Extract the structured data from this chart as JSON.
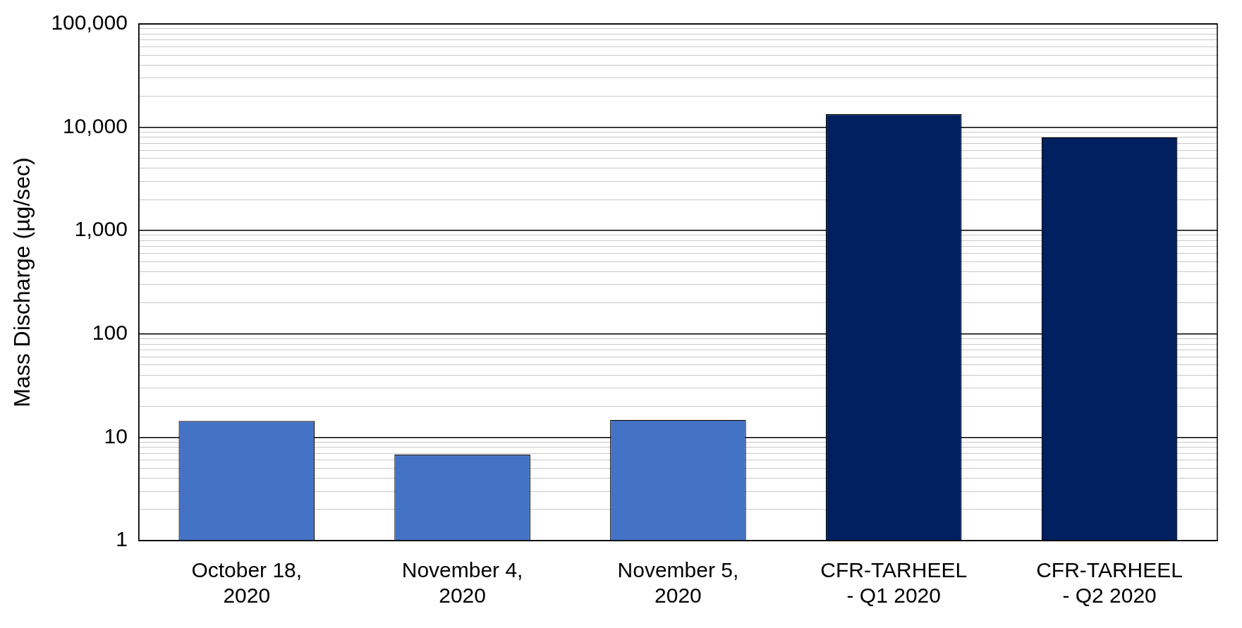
{
  "chart_data": {
    "type": "bar",
    "ylabel": "Mass Discharge (µg/sec)",
    "categories": [
      "October 18, 2020",
      "November 4, 2020",
      "November 5, 2020",
      "CFR-TARHEEL - Q1 2020",
      "CFR-TARHEEL - Q2 2020"
    ],
    "values": [
      14.4,
      6.8,
      14.7,
      13400,
      8000
    ],
    "colors": [
      "#4472c4",
      "#4472c4",
      "#4472c4",
      "#002060",
      "#002060"
    ],
    "log": true,
    "ylim": [
      1,
      100000
    ],
    "yticks": [
      {
        "value": 1,
        "label": "1"
      },
      {
        "value": 2,
        "label": null
      },
      {
        "value": 3,
        "label": null
      },
      {
        "value": 4,
        "label": null
      },
      {
        "value": 5,
        "label": null
      },
      {
        "value": 6,
        "label": null
      },
      {
        "value": 7,
        "label": null
      },
      {
        "value": 8,
        "label": null
      },
      {
        "value": 9,
        "label": null
      },
      {
        "value": 10,
        "label": "10"
      },
      {
        "value": 20,
        "label": null
      },
      {
        "value": 30,
        "label": null
      },
      {
        "value": 40,
        "label": null
      },
      {
        "value": 50,
        "label": null
      },
      {
        "value": 60,
        "label": null
      },
      {
        "value": 70,
        "label": null
      },
      {
        "value": 80,
        "label": null
      },
      {
        "value": 90,
        "label": null
      },
      {
        "value": 100,
        "label": "100"
      },
      {
        "value": 200,
        "label": null
      },
      {
        "value": 300,
        "label": null
      },
      {
        "value": 400,
        "label": null
      },
      {
        "value": 500,
        "label": null
      },
      {
        "value": 600,
        "label": null
      },
      {
        "value": 700,
        "label": null
      },
      {
        "value": 800,
        "label": null
      },
      {
        "value": 900,
        "label": null
      },
      {
        "value": 1000,
        "label": "1,000"
      },
      {
        "value": 2000,
        "label": null
      },
      {
        "value": 3000,
        "label": null
      },
      {
        "value": 4000,
        "label": null
      },
      {
        "value": 5000,
        "label": null
      },
      {
        "value": 6000,
        "label": null
      },
      {
        "value": 7000,
        "label": null
      },
      {
        "value": 8000,
        "label": null
      },
      {
        "value": 9000,
        "label": null
      },
      {
        "value": 10000,
        "label": "10,000"
      },
      {
        "value": 20000,
        "label": null
      },
      {
        "value": 30000,
        "label": null
      },
      {
        "value": 40000,
        "label": null
      },
      {
        "value": 50000,
        "label": null
      },
      {
        "value": 60000,
        "label": null
      },
      {
        "value": 70000,
        "label": null
      },
      {
        "value": 80000,
        "label": null
      },
      {
        "value": 90000,
        "label": null
      },
      {
        "value": 100000,
        "label": "100,000"
      }
    ],
    "grid": "y",
    "legend": false
  }
}
